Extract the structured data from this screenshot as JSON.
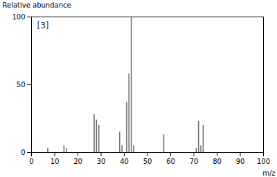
{
  "chart_data": {
    "type": "stem",
    "x": [
      7,
      14,
      15,
      27,
      28,
      29,
      38,
      39,
      41,
      42,
      43,
      44,
      57,
      71,
      72,
      73,
      74
    ],
    "values": [
      3,
      5,
      3,
      28,
      24,
      20,
      15,
      5,
      37,
      58,
      100,
      5,
      13,
      3,
      23,
      5,
      20
    ],
    "color": "#666666",
    "xlabel": "m/z",
    "ylabel": "Relative abundance",
    "annotation": "[3]",
    "xlim": [
      0,
      100
    ],
    "ylim": [
      0,
      100
    ],
    "xticks": [
      0,
      10,
      20,
      30,
      40,
      50,
      60,
      70,
      80,
      90,
      100
    ],
    "yticks": [
      0,
      50,
      100
    ],
    "grid": false
  }
}
